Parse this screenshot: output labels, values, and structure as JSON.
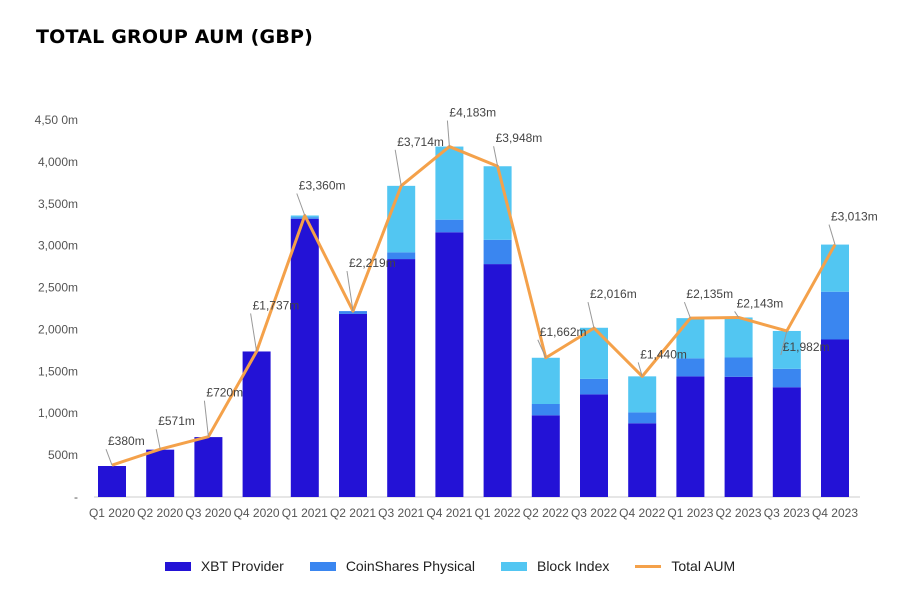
{
  "chart_data": {
    "type": "bar",
    "title": "TOTAL GROUP AUM (GBP)",
    "stacked": true,
    "ylim": [
      0,
      4500
    ],
    "yticks": [
      0,
      500,
      1000,
      1500,
      2000,
      2500,
      3000,
      3500,
      4000,
      4500
    ],
    "ytick_labels": [
      "-",
      "500m",
      "1,000m",
      "1,500m",
      "2,000m",
      "2,500m",
      "3,000m",
      "3,500m",
      "4,000m",
      "4,50 0m"
    ],
    "categories": [
      "Q1 2020",
      "Q2 2020",
      "Q3 2020",
      "Q4 2020",
      "Q1 2021",
      "Q2 2021",
      "Q3 2021",
      "Q4 2021",
      "Q1 2022",
      "Q2 2022",
      "Q3 2022",
      "Q4 2022",
      "Q1 2023",
      "Q2 2023",
      "Q3 2023",
      "Q4 2023"
    ],
    "series": [
      {
        "name": "XBT Provider",
        "color": "#2312d6",
        "values": [
          370,
          565,
          715,
          1737,
          3320,
          2185,
          2840,
          3160,
          2780,
          975,
          1225,
          880,
          1440,
          1435,
          1310,
          1880
        ]
      },
      {
        "name": "CoinShares Physical",
        "color": "#3a86f0",
        "values": [
          0,
          0,
          0,
          0,
          20,
          34,
          80,
          150,
          290,
          135,
          185,
          130,
          215,
          230,
          220,
          570
        ]
      },
      {
        "name": "Block Index",
        "color": "#52c6f2",
        "values": [
          0,
          0,
          0,
          0,
          20,
          0,
          794,
          873,
          878,
          552,
          610,
          430,
          480,
          478,
          452,
          563
        ]
      }
    ],
    "line": {
      "name": "Total AUM",
      "color": "#f4a14a",
      "values": [
        380,
        571,
        720,
        1737,
        3360,
        2219,
        3714,
        4183,
        3948,
        1662,
        2016,
        1440,
        2135,
        2143,
        1982,
        3013
      ],
      "labels": [
        "£380m",
        "£571m",
        "£720m",
        "£1,737m",
        "£3,360m",
        "£2,219m",
        "£3,714m",
        "£4,183m",
        "£3,948m",
        "£1,662m",
        "£2,016m",
        "£1,440m",
        "£2,135m",
        "£2,143m",
        "£1,982m",
        "£3,013m"
      ]
    },
    "legend_position": "bottom",
    "grid": false
  }
}
